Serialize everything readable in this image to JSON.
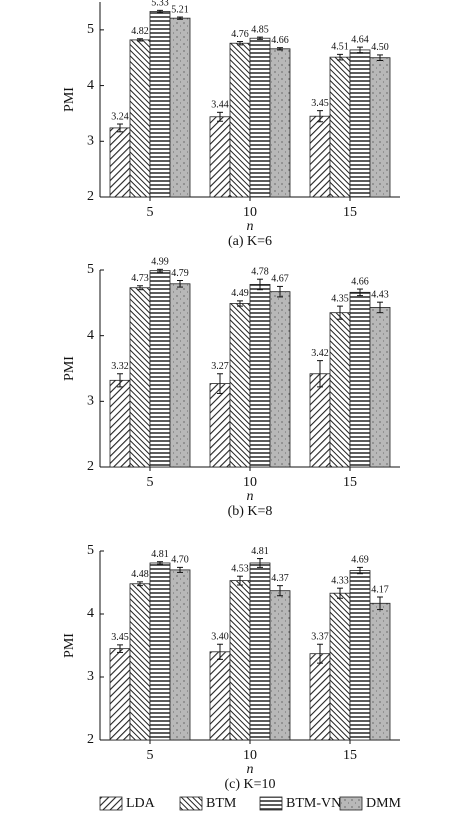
{
  "chart_data": [
    {
      "type": "bar",
      "caption": "(a) K=6",
      "ylabel": "PMI",
      "xlabel": "n",
      "categories": [
        "5",
        "10",
        "15"
      ],
      "ylim": [
        2,
        5.5
      ],
      "yticks": [
        2,
        3,
        4,
        5
      ],
      "series": [
        {
          "pattern": "hatch-up",
          "values": [
            3.24,
            3.44,
            3.45
          ],
          "errors": [
            0.07,
            0.08,
            0.1
          ],
          "value_labels": [
            "3.24",
            "3.44",
            "3.45"
          ]
        },
        {
          "pattern": "hatch-down",
          "values": [
            4.82,
            4.76,
            4.51
          ],
          "errors": [
            0.02,
            0.03,
            0.05
          ],
          "value_labels": [
            "4.82",
            "4.76",
            "4.51"
          ]
        },
        {
          "pattern": "hatch-horizontal",
          "values": [
            5.33,
            4.85,
            4.64
          ],
          "errors": [
            0.02,
            0.02,
            0.05
          ],
          "value_labels": [
            "5.33",
            "4.85",
            "4.64"
          ]
        },
        {
          "pattern": "dots",
          "values": [
            5.21,
            4.66,
            4.5
          ],
          "errors": [
            0.02,
            0.02,
            0.05
          ],
          "value_labels": [
            "5.21",
            "4.66",
            "4.50"
          ]
        }
      ]
    },
    {
      "type": "bar",
      "caption": "(b) K=8",
      "ylabel": "PMI",
      "xlabel": "n",
      "categories": [
        "5",
        "10",
        "15"
      ],
      "ylim": [
        2,
        5
      ],
      "yticks": [
        2,
        3,
        4,
        5
      ],
      "series": [
        {
          "pattern": "hatch-up",
          "values": [
            3.32,
            3.27,
            3.42
          ],
          "errors": [
            0.1,
            0.15,
            0.2
          ],
          "value_labels": [
            "3.32",
            "3.27",
            "3.42"
          ]
        },
        {
          "pattern": "hatch-down",
          "values": [
            4.73,
            4.49,
            4.35
          ],
          "errors": [
            0.03,
            0.04,
            0.1
          ],
          "value_labels": [
            "4.73",
            "4.49",
            "4.35"
          ]
        },
        {
          "pattern": "hatch-horizontal",
          "values": [
            4.99,
            4.78,
            4.66
          ],
          "errors": [
            0.02,
            0.08,
            0.05
          ],
          "value_labels": [
            "4.99",
            "4.78",
            "4.66"
          ]
        },
        {
          "pattern": "dots",
          "values": [
            4.79,
            4.67,
            4.43
          ],
          "errors": [
            0.05,
            0.08,
            0.08
          ],
          "value_labels": [
            "4.79",
            "4.67",
            "4.43"
          ]
        }
      ]
    },
    {
      "type": "bar",
      "caption": "(c) K=10",
      "ylabel": "PMI",
      "xlabel": "n",
      "categories": [
        "5",
        "10",
        "15"
      ],
      "ylim": [
        2,
        5
      ],
      "yticks": [
        2,
        3,
        4,
        5
      ],
      "series": [
        {
          "name": "LDA",
          "pattern": "hatch-up",
          "values": [
            3.45,
            3.4,
            3.37
          ],
          "errors": [
            0.06,
            0.12,
            0.15
          ],
          "value_labels": [
            "3.45",
            "3.40",
            "3.37"
          ]
        },
        {
          "name": "BTM",
          "pattern": "hatch-down",
          "values": [
            4.48,
            4.53,
            4.33
          ],
          "errors": [
            0.03,
            0.07,
            0.08
          ],
          "value_labels": [
            "4.48",
            "4.53",
            "4.33"
          ]
        },
        {
          "name": "BTM-VN",
          "pattern": "hatch-horizontal",
          "values": [
            4.81,
            4.81,
            4.69
          ],
          "errors": [
            0.02,
            0.07,
            0.05
          ],
          "value_labels": [
            "4.81",
            "4.81",
            "4.69"
          ]
        },
        {
          "name": "DMM",
          "pattern": "dots",
          "values": [
            4.7,
            4.37,
            4.17
          ],
          "errors": [
            0.04,
            0.08,
            0.1
          ],
          "value_labels": [
            "4.70",
            "4.37",
            "4.17"
          ]
        }
      ]
    }
  ]
}
